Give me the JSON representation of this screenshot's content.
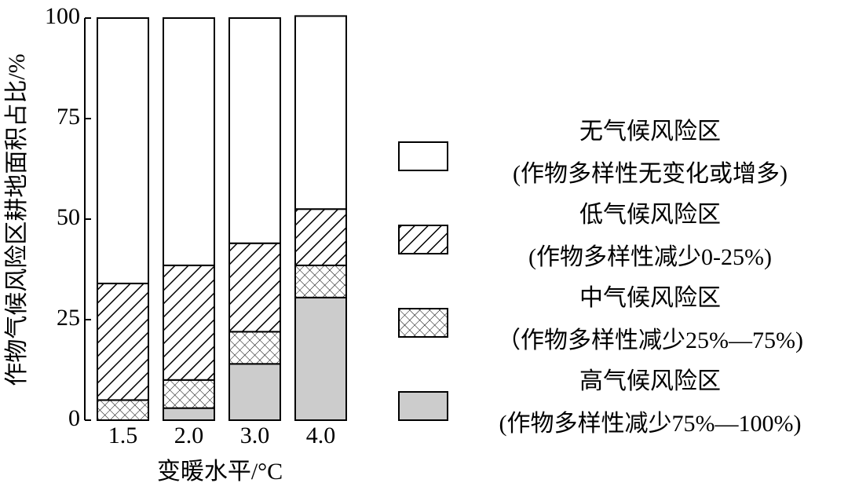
{
  "chart_data": {
    "type": "stacked_bar",
    "x_label": "变暖水平/°C",
    "y_label": "作物气候风险区耕地面积占比/%",
    "categories": [
      "1.5",
      "2.0",
      "3.0",
      "4.0"
    ],
    "ylim": [
      0,
      100
    ],
    "yticks": [
      0,
      25,
      50,
      75,
      100
    ],
    "series": [
      {
        "name": "高气候风险区",
        "detail": "(作物多样性减少75%—100%)",
        "color": "#cccccc",
        "pattern": "solid",
        "values": [
          0,
          3,
          14,
          30.5
        ]
      },
      {
        "name": "中气候风险区",
        "detail": "（作物多样性减少25%—75%)",
        "color": "#000000",
        "pattern": "crosshatch",
        "values": [
          5,
          7,
          8,
          8
        ]
      },
      {
        "name": "低气候风险区",
        "detail": "(作物多样性减少0-25%)",
        "color": "#000000",
        "pattern": "hatch",
        "values": [
          29,
          28.5,
          22,
          14
        ]
      },
      {
        "name": "无气候风险区",
        "detail": "(作物多样性无变化或增多)",
        "color": "#ffffff",
        "pattern": "solid",
        "values": [
          66,
          61.5,
          56,
          48
        ]
      }
    ]
  }
}
